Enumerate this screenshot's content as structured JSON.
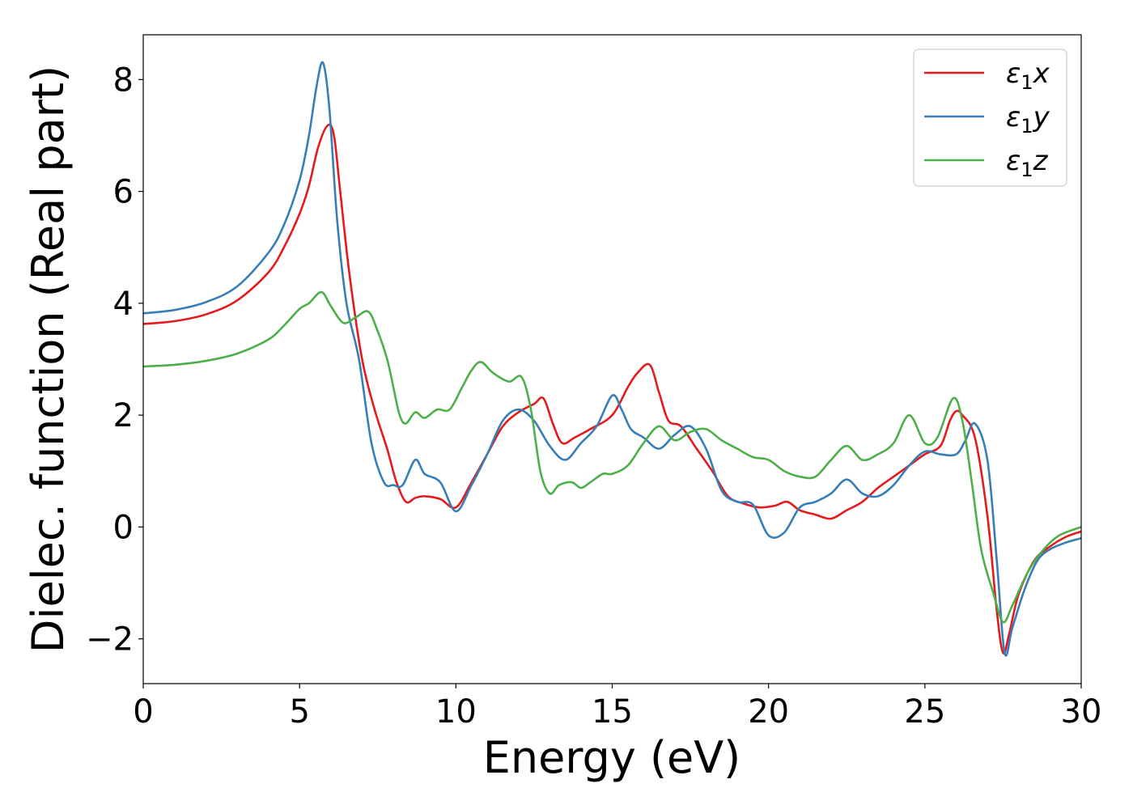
{
  "chart_data": {
    "type": "line",
    "xlabel": "Energy (eV)",
    "ylabel": "Dielec. function (Real part)",
    "xlim": [
      0,
      30
    ],
    "ylim": [
      -2.8,
      8.8
    ],
    "xticks": [
      {
        "value": 0,
        "label": "0"
      },
      {
        "value": 5,
        "label": "5"
      },
      {
        "value": 10,
        "label": "10"
      },
      {
        "value": 15,
        "label": "15"
      },
      {
        "value": 20,
        "label": "20"
      },
      {
        "value": 25,
        "label": "25"
      },
      {
        "value": 30,
        "label": "30"
      }
    ],
    "yticks": [
      {
        "value": -2,
        "label": "−2"
      },
      {
        "value": 0,
        "label": "0"
      },
      {
        "value": 2,
        "label": "2"
      },
      {
        "value": 4,
        "label": "4"
      },
      {
        "value": 6,
        "label": "6"
      },
      {
        "value": 8,
        "label": "8"
      }
    ],
    "grid": false,
    "legend_position": "top-right",
    "series": [
      {
        "name": "ε₁x",
        "legend_base": "ε",
        "legend_sub": "1",
        "legend_var": "x",
        "color": "#e41a1c",
        "x": [
          0,
          1,
          2,
          3,
          4,
          4.5,
          5,
          5.3,
          5.6,
          5.9,
          6.1,
          6.3,
          6.6,
          7.0,
          7.4,
          7.8,
          8.1,
          8.4,
          8.7,
          9.0,
          9.5,
          10.0,
          10.5,
          11.0,
          11.5,
          12.0,
          12.5,
          12.8,
          13.1,
          13.4,
          13.8,
          14.3,
          15.0,
          15.5,
          15.8,
          16.2,
          16.5,
          16.8,
          17.2,
          17.7,
          18.2,
          18.7,
          19.2,
          19.7,
          20.2,
          20.6,
          21.0,
          21.5,
          22.0,
          22.5,
          23.0,
          23.5,
          24.0,
          24.5,
          25.0,
          25.5,
          25.8,
          26.0,
          26.2,
          26.6,
          27.0,
          27.3,
          27.5,
          27.7,
          28.0,
          28.5,
          29.0,
          29.5,
          30.0
        ],
        "y": [
          3.63,
          3.68,
          3.8,
          4.05,
          4.55,
          5.0,
          5.6,
          6.1,
          6.8,
          7.18,
          7.0,
          6.0,
          4.5,
          3.0,
          2.1,
          1.4,
          0.8,
          0.45,
          0.52,
          0.55,
          0.5,
          0.35,
          0.8,
          1.3,
          1.8,
          2.05,
          2.2,
          2.3,
          1.85,
          1.5,
          1.6,
          1.75,
          2.0,
          2.5,
          2.75,
          2.9,
          2.4,
          1.9,
          1.8,
          1.4,
          1.0,
          0.55,
          0.42,
          0.35,
          0.38,
          0.45,
          0.3,
          0.22,
          0.15,
          0.3,
          0.45,
          0.7,
          0.9,
          1.1,
          1.3,
          1.45,
          1.9,
          2.07,
          2.0,
          1.6,
          0.2,
          -1.5,
          -2.25,
          -1.9,
          -1.2,
          -0.6,
          -0.35,
          -0.18,
          -0.08
        ]
      },
      {
        "name": "ε₁y",
        "legend_base": "ε",
        "legend_sub": "1",
        "legend_var": "y",
        "color": "#377eb8",
        "x": [
          0,
          1,
          2,
          3,
          4,
          4.5,
          5,
          5.3,
          5.55,
          5.75,
          5.95,
          6.2,
          6.5,
          6.9,
          7.3,
          7.7,
          8.0,
          8.3,
          8.7,
          9.0,
          9.5,
          10.0,
          10.5,
          11.0,
          11.5,
          12.0,
          12.5,
          13.0,
          13.5,
          14.0,
          14.5,
          15.0,
          15.3,
          15.6,
          16.0,
          16.5,
          17.0,
          17.5,
          18.0,
          18.5,
          19.0,
          19.5,
          20.0,
          20.5,
          21.0,
          21.5,
          22.0,
          22.5,
          23.0,
          23.5,
          24.0,
          24.5,
          25.0,
          25.5,
          26.0,
          26.3,
          26.6,
          27.0,
          27.3,
          27.55,
          27.8,
          28.2,
          28.6,
          29.0,
          29.5,
          30.0
        ],
        "y": [
          3.82,
          3.88,
          4.02,
          4.3,
          4.9,
          5.4,
          6.2,
          7.0,
          7.9,
          8.3,
          7.5,
          5.5,
          4.0,
          3.0,
          1.5,
          0.8,
          0.75,
          0.75,
          1.2,
          0.95,
          0.8,
          0.28,
          0.75,
          1.3,
          1.9,
          2.1,
          1.9,
          1.45,
          1.2,
          1.5,
          1.8,
          2.35,
          2.1,
          1.75,
          1.6,
          1.4,
          1.65,
          1.8,
          1.4,
          0.65,
          0.45,
          0.4,
          -0.15,
          -0.1,
          0.35,
          0.45,
          0.6,
          0.85,
          0.6,
          0.55,
          0.75,
          1.1,
          1.35,
          1.3,
          1.3,
          1.55,
          1.85,
          1.2,
          -0.6,
          -2.25,
          -1.8,
          -1.1,
          -0.6,
          -0.4,
          -0.28,
          -0.2
        ]
      },
      {
        "name": "ε₁z",
        "legend_base": "ε",
        "legend_sub": "1",
        "legend_var": "z",
        "color": "#4daf4a",
        "x": [
          0,
          1,
          2,
          3,
          4,
          4.5,
          5,
          5.3,
          5.7,
          6.0,
          6.4,
          6.8,
          7.2,
          7.5,
          7.8,
          8.0,
          8.2,
          8.4,
          8.7,
          9.0,
          9.4,
          9.8,
          10.2,
          10.5,
          10.8,
          11.2,
          11.7,
          12.1,
          12.4,
          12.7,
          13.0,
          13.3,
          13.7,
          14.0,
          14.3,
          14.7,
          15.0,
          15.5,
          16.0,
          16.5,
          17.0,
          17.5,
          18.0,
          18.5,
          19.0,
          19.5,
          20.0,
          20.5,
          21.0,
          21.5,
          22.0,
          22.5,
          23.0,
          23.5,
          24.0,
          24.5,
          25.0,
          25.4,
          25.9,
          26.2,
          26.5,
          26.8,
          27.2,
          27.5,
          27.8,
          28.3,
          28.8,
          29.3,
          30.0
        ],
        "y": [
          2.87,
          2.9,
          2.97,
          3.1,
          3.35,
          3.6,
          3.9,
          4.0,
          4.2,
          3.95,
          3.65,
          3.75,
          3.85,
          3.5,
          3.0,
          2.5,
          2.0,
          1.85,
          2.05,
          1.95,
          2.1,
          2.1,
          2.5,
          2.8,
          2.95,
          2.75,
          2.6,
          2.68,
          2.1,
          1.0,
          0.6,
          0.75,
          0.8,
          0.7,
          0.8,
          0.95,
          0.95,
          1.1,
          1.5,
          1.8,
          1.55,
          1.7,
          1.75,
          1.55,
          1.4,
          1.25,
          1.2,
          1.0,
          0.9,
          0.9,
          1.2,
          1.45,
          1.2,
          1.3,
          1.5,
          2.0,
          1.5,
          1.6,
          2.3,
          1.9,
          0.8,
          -0.4,
          -1.2,
          -1.7,
          -1.4,
          -0.8,
          -0.4,
          -0.15,
          0.0
        ]
      }
    ]
  }
}
